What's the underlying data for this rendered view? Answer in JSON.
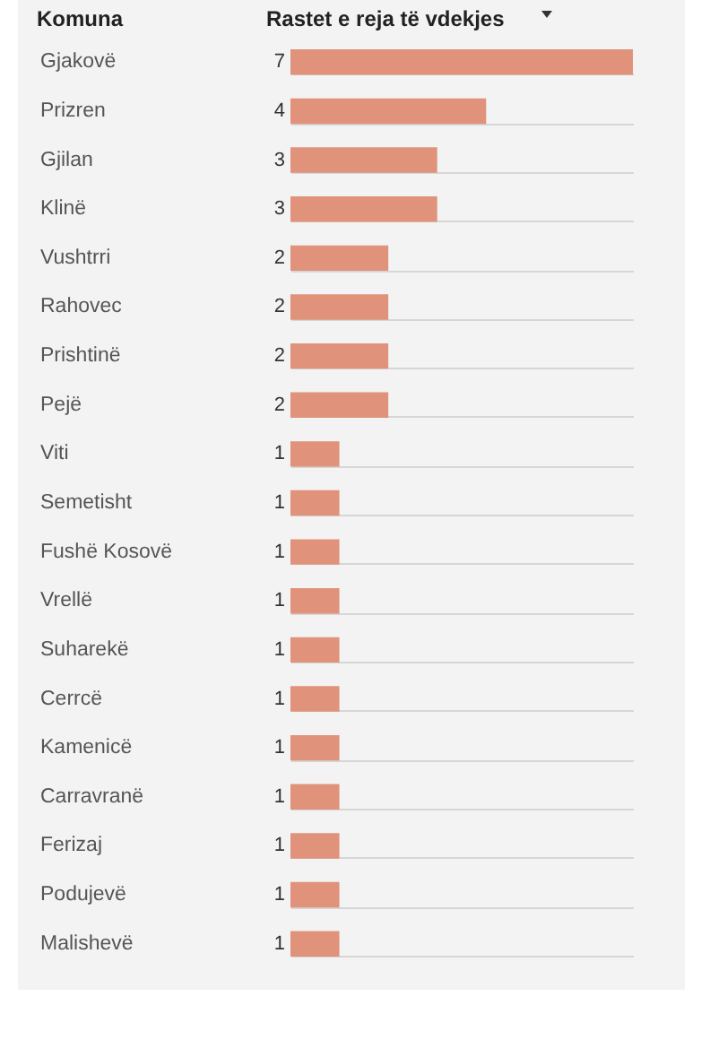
{
  "chart_data": {
    "type": "bar",
    "orientation": "horizontal",
    "ylabel": "Komuna",
    "xlabel": "Rastet e reja të vdekjes",
    "categories": [
      "Gjakovë",
      "Prizren",
      "Gjilan",
      "Klinë",
      "Vushtrri",
      "Rahovec",
      "Prishtinë",
      "Pejë",
      "Viti",
      "Semetisht",
      "Fushë Kosovë",
      "Vrellë",
      "Suharekë",
      "Cerrcë",
      "Kamenicë",
      "Carravranë",
      "Ferizaj",
      "Podujevë",
      "Malishevë"
    ],
    "values": [
      7,
      4,
      3,
      3,
      2,
      2,
      2,
      2,
      1,
      1,
      1,
      1,
      1,
      1,
      1,
      1,
      1,
      1,
      1
    ],
    "color": "#e0937a",
    "data_labels": true,
    "grid": "y"
  }
}
